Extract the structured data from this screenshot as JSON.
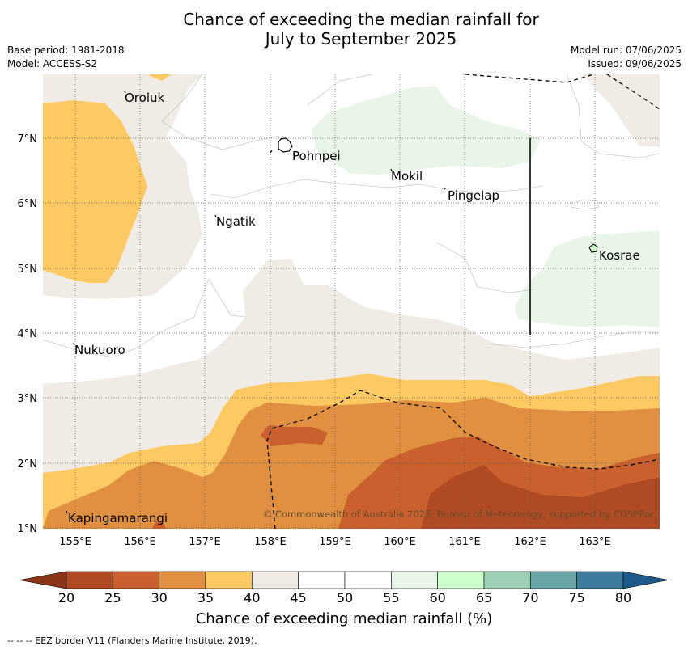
{
  "title": {
    "line1": "Chance of exceeding the median rainfall for",
    "line2": "July to September 2025"
  },
  "meta": {
    "base_period": "Base period: 1981-2018",
    "model": "Model: ACCESS-S2",
    "model_run": "Model run: 07/06/2025",
    "issued": "Issued: 09/06/2025"
  },
  "map": {
    "lon_labels": [
      "155°E",
      "156°E",
      "157°E",
      "158°E",
      "159°E",
      "160°E",
      "161°E",
      "162°E",
      "163°E"
    ],
    "lat_labels": [
      "1°N",
      "2°N",
      "3°N",
      "4°N",
      "5°N",
      "6°N",
      "7°N"
    ],
    "places": [
      {
        "name": "Oroluk"
      },
      {
        "name": "Pohnpei"
      },
      {
        "name": "Mokil"
      },
      {
        "name": "Pingelap"
      },
      {
        "name": "Ngatik"
      },
      {
        "name": "Kosrae"
      },
      {
        "name": "Nukuoro"
      },
      {
        "name": "Kapingamarangi"
      }
    ],
    "credit": "© Commonwealth of Australia 2025, Bureau of Meteorology, supported by COSPPac"
  },
  "colorbar": {
    "ticks": [
      "20",
      "25",
      "30",
      "35",
      "40",
      "45",
      "50",
      "55",
      "60",
      "65",
      "70",
      "75",
      "80"
    ],
    "colors": [
      "#b04a24",
      "#c9602e",
      "#e09040",
      "#fdc963",
      "#f0ebe5",
      "#ffffff",
      "#ffffff",
      "#e9f5e8",
      "#ccffcc",
      "#9dd0b5",
      "#6aa6a6",
      "#3f7b9c"
    ],
    "under_color": "#8a3517",
    "over_color": "#1e5a8c",
    "label": "Chance of exceeding median rainfall (%)"
  },
  "footnote": "--  --  -- EEZ border V11 (Flanders Marine Institute, 2019)."
}
